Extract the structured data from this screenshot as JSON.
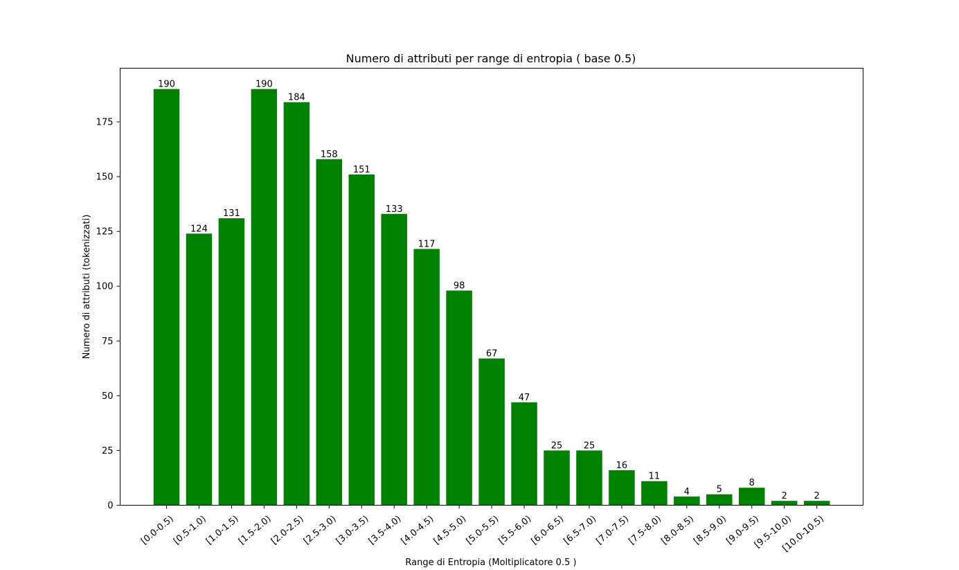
{
  "chart_data": {
    "type": "bar",
    "title": "Numero di attributi per range di entropia ( base 0.5)",
    "xlabel": "Range di Entropia (Moltiplicatore 0.5 )",
    "ylabel": "Numero di attributi (tokenizzati)",
    "categories": [
      "[0.0-0.5)",
      "[0.5-1.0)",
      "[1.0-1.5)",
      "[1.5-2.0)",
      "[2.0-2.5)",
      "[2.5-3.0)",
      "[3.0-3.5)",
      "[3.5-4.0)",
      "[4.0-4.5)",
      "[4.5-5.0)",
      "[5.0-5.5)",
      "[5.5-6.0)",
      "[6.0-6.5)",
      "[6.5-7.0)",
      "[7.0-7.5)",
      "[7.5-8.0)",
      "[8.0-8.5)",
      "[8.5-9.0)",
      "[9.0-9.5)",
      "[9.5-10.0)",
      "[10.0-10.5)"
    ],
    "values": [
      190,
      124,
      131,
      190,
      184,
      158,
      151,
      133,
      117,
      98,
      67,
      47,
      25,
      25,
      16,
      11,
      4,
      5,
      8,
      2,
      2
    ],
    "ylim": [
      0,
      199.5
    ],
    "yticks": [
      0,
      25,
      50,
      75,
      100,
      125,
      150,
      175
    ],
    "bar_color": "#008000",
    "grid": false,
    "legend": "none"
  }
}
